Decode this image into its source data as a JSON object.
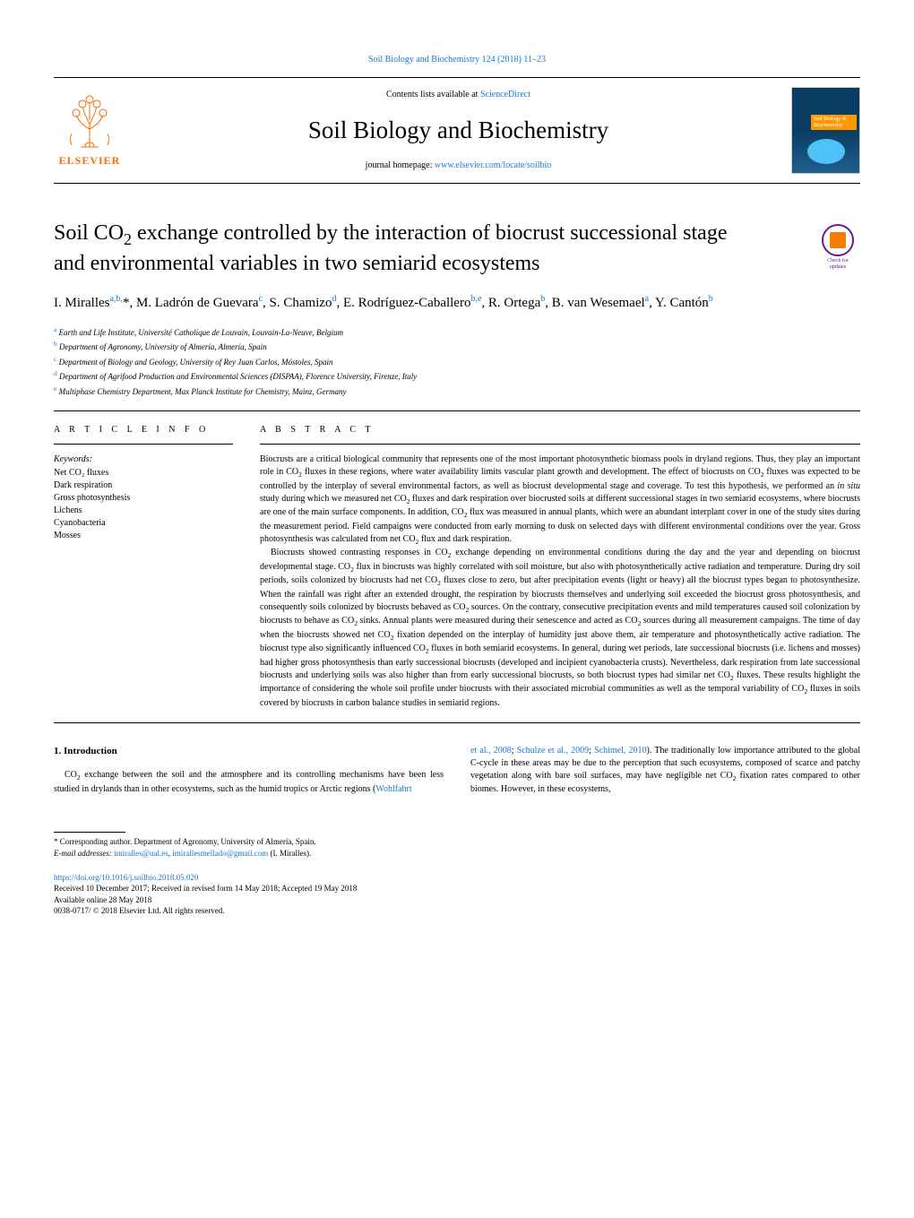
{
  "header": {
    "citation": "Soil Biology and Biochemistry 124 (2018) 11–23",
    "contents_prefix": "Contents lists available at ",
    "contents_link": "ScienceDirect",
    "journal_title": "Soil Biology and Biochemistry",
    "homepage_prefix": "journal homepage: ",
    "homepage_link": "www.elsevier.com/locate/soilbio",
    "publisher": "ELSEVIER",
    "cover_label": "Soil Biology & Biochemistry"
  },
  "check_badge": {
    "line1": "Check for",
    "line2": "updates"
  },
  "article": {
    "title_html": "Soil CO<sub>2</sub> exchange controlled by the interaction of biocrust successional stage and environmental variables in two semiarid ecosystems",
    "authors_html": "I. Miralles<sup>a,b,</sup>*, M. Ladrón de Guevara<sup>c</sup>, S. Chamizo<sup>d</sup>, E. Rodríguez-Caballero<sup>b,e</sup>, R. Ortega<sup>b</sup>, B. van Wesemael<sup>a</sup>, Y. Cantón<sup>b</sup>",
    "affiliations": [
      {
        "sup": "a",
        "text": "Earth and Life Institute, Université Catholique de Louvain, Louvain-La-Neuve, Belgium"
      },
      {
        "sup": "b",
        "text": "Department of Agronomy, University of Almería, Almería, Spain"
      },
      {
        "sup": "c",
        "text": "Department of Biology and Geology, University of Rey Juan Carlos, Móstoles, Spain"
      },
      {
        "sup": "d",
        "text": "Department of Agrifood Production and Environmental Sciences (DISPAA), Florence University, Firenze, Italy"
      },
      {
        "sup": "e",
        "text": "Multiphase Chemistry Department, Max Planck Institute for Chemistry, Mainz, Germany"
      }
    ]
  },
  "labels": {
    "article_info": "A R T I C L E  I N F O",
    "abstract": "A B S T R A C T",
    "keywords_label": "Keywords:"
  },
  "keywords": [
    "Net CO₂ fluxes",
    "Dark respiration",
    "Gross photosynthesis",
    "Lichens",
    "Cyanobacteria",
    "Mosses"
  ],
  "abstract": {
    "p1_html": "Biocrusts are a critical biological community that represents one of the most important photosynthetic biomass pools in dryland regions. Thus, they play an important role in CO<sub>2</sub> fluxes in these regions, where water availability limits vascular plant growth and development. The effect of biocrusts on CO<sub>2</sub> fluxes was expected to be controlled by the interplay of several environmental factors, as well as biocrust developmental stage and coverage. To test this hypothesis, we performed an <i>in situ</i> study during which we measured net CO<sub>2</sub> fluxes and dark respiration over biocrusted soils at different successional stages in two semiarid ecosystems, where biocrusts are one of the main surface components. In addition, CO<sub>2</sub> flux was measured in annual plants, which were an abundant interplant cover in one of the study sites during the measurement period. Field campaigns were conducted from early morning to dusk on selected days with different environmental conditions over the year. Gross photosynthesis was calculated from net CO<sub>2</sub> flux and dark respiration.",
    "p2_html": "Biocrusts showed contrasting responses in CO<sub>2</sub> exchange depending on environmental conditions during the day and the year and depending on biocrust developmental stage. CO<sub>2</sub> flux in biocrusts was highly correlated with soil moisture, but also with photosynthetically active radiation and temperature. During dry soil periods, soils colonized by biocrusts had net CO<sub>2</sub> fluxes close to zero, but after precipitation events (light or heavy) all the biocrust types began to photosynthesize. When the rainfall was right after an extended drought, the respiration by biocrusts themselves and underlying soil exceeded the biocrust gross photosynthesis, and consequently soils colonized by biocrusts behaved as CO<sub>2</sub> sources. On the contrary, consecutive precipitation events and mild temperatures caused soil colonization by biocrusts to behave as CO<sub>2</sub> sinks. Annual plants were measured during their senescence and acted as CO<sub>2</sub> sources during all measurement campaigns. The time of day when the biocrusts showed net CO<sub>2</sub> fixation depended on the interplay of humidity just above them, air temperature and photosynthetically active radiation. The biocrust type also significantly influenced CO<sub>2</sub> fluxes in both semiarid ecosystems. In general, during wet periods, late successional biocrusts (i.e. lichens and mosses) had higher gross photosynthesis than early successional biocrusts (developed and incipient cyanobacteria crusts). Nevertheless, dark respiration from late successional biocrusts and underlying soils was also higher than from early successional biocrusts, so both biocrust types had similar net CO<sub>2</sub> fluxes. These results highlight the importance of considering the whole soil profile under biocrusts with their associated microbial communities as well as the temporal variability of CO<sub>2</sub> fluxes in soils covered by biocrusts in carbon balance studies in semiarid regions."
  },
  "intro": {
    "heading": "1. Introduction",
    "col1_html": "CO<sub>2</sub> exchange between the soil and the atmosphere and its controlling mechanisms have been less studied in drylands than in other ecosystems, such as the humid tropics or Arctic regions (<a class='ref-link' href='#'>Wohlfahrt</a>",
    "col2_html": "<a class='ref-link' href='#'>et al., 2008</a>; <a class='ref-link' href='#'>Schulze et al., 2009</a>; <a class='ref-link' href='#'>Schimel, 2010</a>). The traditionally low importance attributed to the global C-cycle in these areas may be due to the perception that such ecosystems, composed of scarce and patchy vegetation along with bare soil surfaces, may have negligible net CO<sub>2</sub> fixation rates compared to other biomes. However, in these ecosystems,"
  },
  "footer": {
    "corresponding": "* Corresponding author. Department of Agronomy, University of Almería, Spain.",
    "email_label": "E-mail addresses: ",
    "email1": "imiralles@ual.es",
    "email2": "imirallesmellado@gmail.com",
    "email_suffix": " (I. Miralles).",
    "doi": "https://doi.org/10.1016/j.soilbio.2018.05.020",
    "received": "Received 10 December 2017; Received in revised form 14 May 2018; Accepted 19 May 2018",
    "available": "Available online 28 May 2018",
    "copyright": "0038-0717/ © 2018 Elsevier Ltd. All rights reserved."
  },
  "colors": {
    "link": "#1976d2",
    "elsevier_orange": "#ff6b00",
    "cover_bg": "#0a3d62",
    "badge_purple": "#6a1b9a",
    "badge_orange": "#f57c00"
  }
}
